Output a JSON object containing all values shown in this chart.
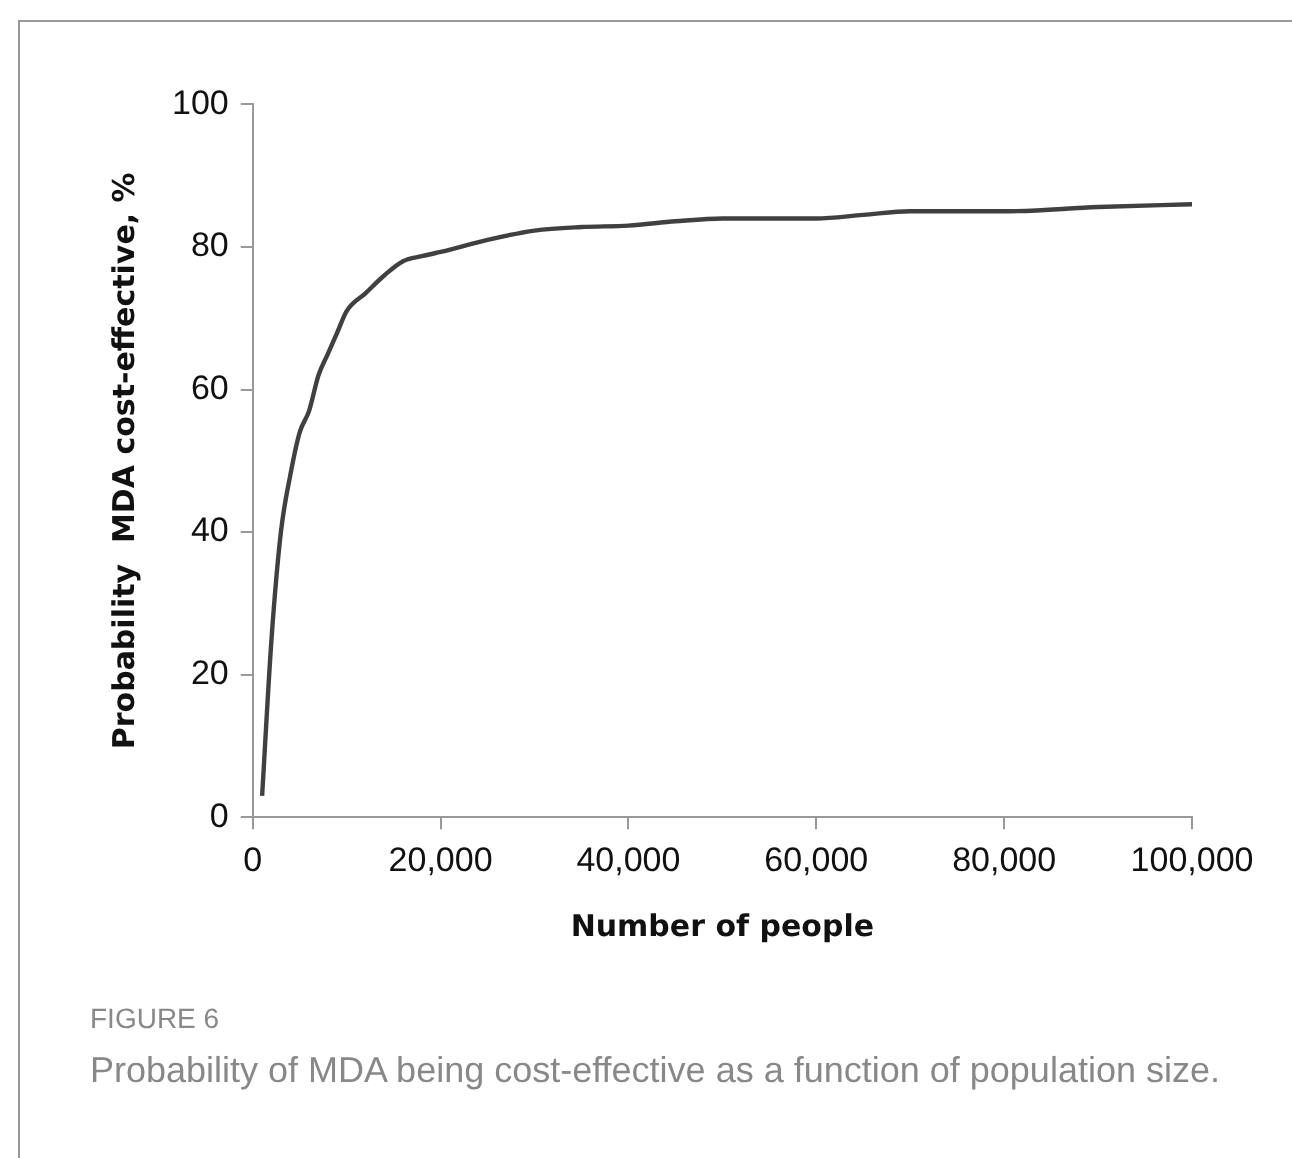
{
  "chart_data": {
    "type": "line",
    "xlabel": "Number of people",
    "ylabel": "Probability  MDA cost-effective, %",
    "x": [
      1000,
      2000,
      3000,
      4000,
      5000,
      6000,
      7000,
      8000,
      9000,
      10000,
      12000,
      14000,
      16000,
      18000,
      20000,
      25000,
      30000,
      35000,
      40000,
      45000,
      50000,
      55000,
      60000,
      65000,
      70000,
      75000,
      80000,
      90000,
      100000
    ],
    "series": [
      {
        "color": "#404040",
        "values": [
          3,
          25,
          40,
          48,
          54,
          57,
          62,
          65,
          68,
          71,
          73.5,
          76,
          78,
          78.7,
          79.3,
          81,
          82.3,
          82.8,
          83,
          83.6,
          84,
          84,
          84,
          84.5,
          85,
          85,
          85,
          85.6,
          86
        ]
      }
    ],
    "xlim": [
      0,
      100000
    ],
    "xticks": [
      0,
      {
        "value": 20000,
        "label": "20,000"
      },
      {
        "value": 40000,
        "label": "40,000"
      },
      {
        "value": 60000,
        "label": "60,000"
      },
      {
        "value": 80000,
        "label": "80,000"
      },
      {
        "value": 100000,
        "label": "100,000"
      }
    ],
    "ylim": [
      0,
      100
    ],
    "yticks": [
      0,
      20,
      40,
      60,
      80,
      100
    ],
    "grid": false,
    "legend": false,
    "marker": "none",
    "line_style": "solid",
    "annotations": [
      "FIGURE 6",
      "Probability of MDA being cost-effective as a function of population size."
    ]
  }
}
